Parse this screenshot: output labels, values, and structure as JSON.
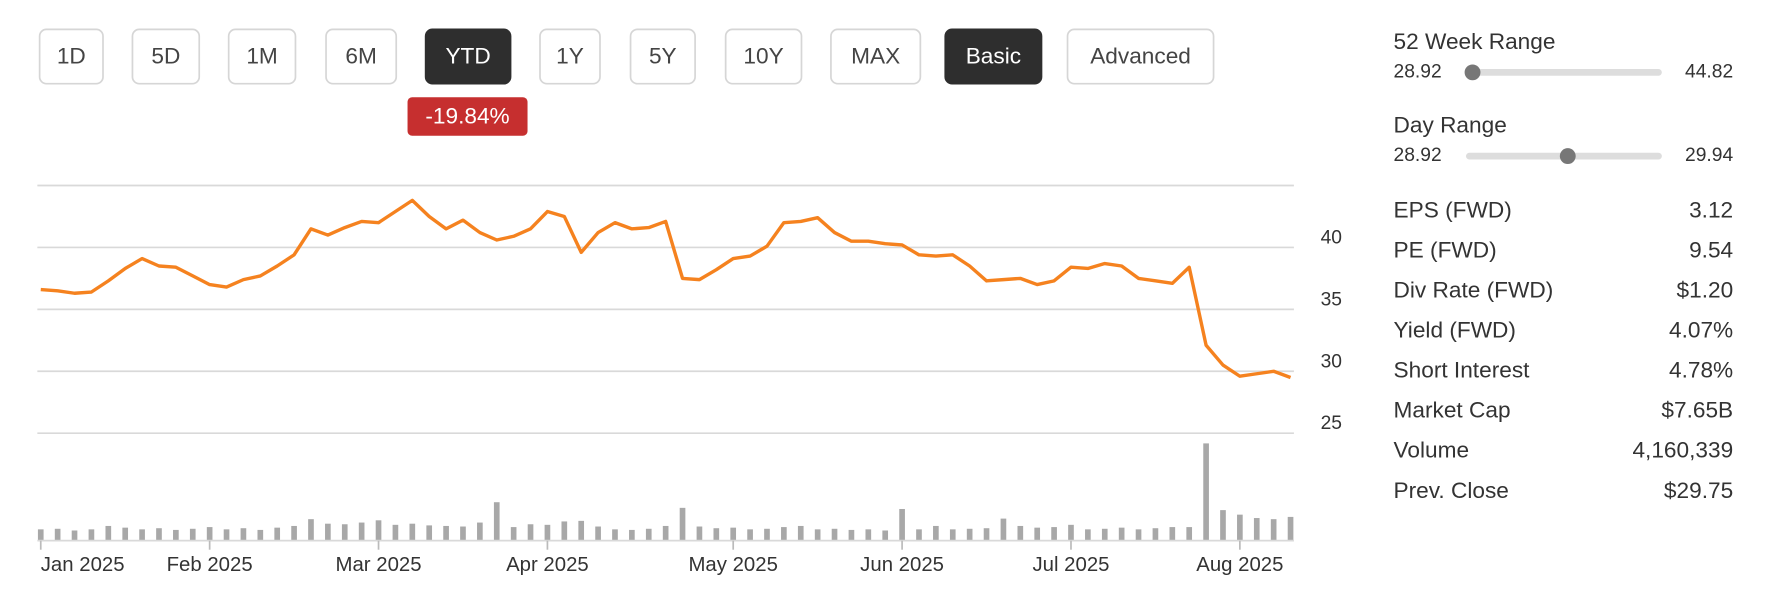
{
  "buttons": [
    {
      "label": "1D",
      "active": false
    },
    {
      "label": "5D",
      "active": false
    },
    {
      "label": "1M",
      "active": false
    },
    {
      "label": "6M",
      "active": false
    },
    {
      "label": "YTD",
      "active": true
    },
    {
      "label": "1Y",
      "active": false
    },
    {
      "label": "5Y",
      "active": false
    },
    {
      "label": "10Y",
      "active": false
    },
    {
      "label": "MAX",
      "active": false
    },
    {
      "label": "Basic",
      "active": true
    },
    {
      "label": "Advanced",
      "active": false
    }
  ],
  "badge": "-19.84%",
  "chart_data": {
    "type": "line",
    "categories": [
      "Jan 2025",
      null,
      null,
      null,
      null,
      null,
      null,
      null,
      null,
      null,
      "Feb 2025",
      null,
      null,
      null,
      null,
      null,
      null,
      null,
      null,
      null,
      "Mar 2025",
      null,
      null,
      null,
      null,
      null,
      null,
      null,
      null,
      null,
      "Apr 2025",
      null,
      null,
      null,
      null,
      null,
      null,
      null,
      null,
      null,
      null,
      "May 2025",
      null,
      null,
      null,
      null,
      null,
      null,
      null,
      null,
      null,
      "Jun 2025",
      null,
      null,
      null,
      null,
      null,
      null,
      null,
      null,
      null,
      "Jul 2025",
      null,
      null,
      null,
      null,
      null,
      null,
      null,
      null,
      null,
      "Aug 2025",
      null,
      null,
      null
    ],
    "series": [
      {
        "color": "#f5821f",
        "values": [
          36.6,
          36.5,
          36.3,
          36.4,
          37.3,
          38.3,
          39.1,
          38.5,
          38.4,
          37.7,
          37.0,
          36.8,
          37.4,
          37.7,
          38.5,
          39.4,
          41.5,
          41.0,
          41.6,
          42.1,
          42.0,
          42.9,
          43.8,
          42.5,
          41.5,
          42.2,
          41.2,
          40.6,
          40.9,
          41.5,
          42.9,
          42.5,
          39.6,
          41.2,
          42.0,
          41.5,
          41.6,
          42.1,
          37.5,
          37.4,
          38.2,
          39.1,
          39.3,
          40.1,
          42.0,
          42.1,
          42.4,
          41.2,
          40.5,
          40.5,
          40.3,
          40.2,
          39.4,
          39.3,
          39.4,
          38.5,
          37.3,
          37.4,
          37.5,
          37.0,
          37.3,
          38.4,
          38.3,
          38.7,
          38.5,
          37.5,
          37.3,
          37.1,
          38.4,
          32.1,
          30.5,
          29.6,
          29.8,
          30.0,
          29.5
        ]
      },
      {
        "color": "#a8a8a8",
        "axis": "y2",
        "values": [
          2.0,
          2.1,
          1.8,
          2.0,
          2.6,
          2.3,
          2.0,
          2.2,
          1.9,
          2.1,
          2.4,
          2.0,
          2.2,
          1.9,
          2.3,
          2.6,
          3.8,
          3.0,
          2.9,
          3.2,
          3.6,
          2.8,
          3.0,
          2.7,
          2.6,
          2.5,
          3.2,
          6.8,
          2.4,
          2.9,
          2.8,
          3.4,
          3.5,
          2.5,
          2.0,
          1.9,
          2.1,
          2.6,
          5.8,
          2.5,
          2.2,
          2.3,
          2.0,
          2.1,
          2.4,
          2.6,
          2.0,
          2.1,
          1.9,
          2.0,
          1.8,
          5.6,
          2.0,
          2.6,
          2.0,
          2.1,
          2.2,
          3.9,
          2.6,
          2.3,
          2.4,
          2.8,
          2.0,
          2.1,
          2.3,
          2.0,
          2.2,
          2.4,
          2.4,
          17.2,
          5.4,
          4.6,
          4.0,
          3.8,
          4.2
        ]
      }
    ],
    "ylim": [
      25,
      45
    ],
    "yticks": [
      25,
      30,
      35,
      40
    ],
    "grid": true
  },
  "ranges": [
    {
      "label": "52 Week Range",
      "low": "28.92",
      "high": "44.82",
      "low_value": 28.92,
      "high_value": 44.82,
      "current": 29.45
    },
    {
      "label": "Day Range",
      "low": "28.92",
      "high": "29.94",
      "low_value": 28.92,
      "high_value": 29.94,
      "current": 29.45
    }
  ],
  "stats": [
    [
      "EPS (FWD)",
      "3.12"
    ],
    [
      "PE (FWD)",
      "9.54"
    ],
    [
      "Div Rate (FWD)",
      "$1.20"
    ],
    [
      "Yield (FWD)",
      "4.07%"
    ],
    [
      "Short Interest",
      "4.78%"
    ],
    [
      "Market Cap",
      "$7.65B"
    ],
    [
      "Volume",
      "4,160,339"
    ],
    [
      "Prev. Close",
      "$29.75"
    ]
  ]
}
